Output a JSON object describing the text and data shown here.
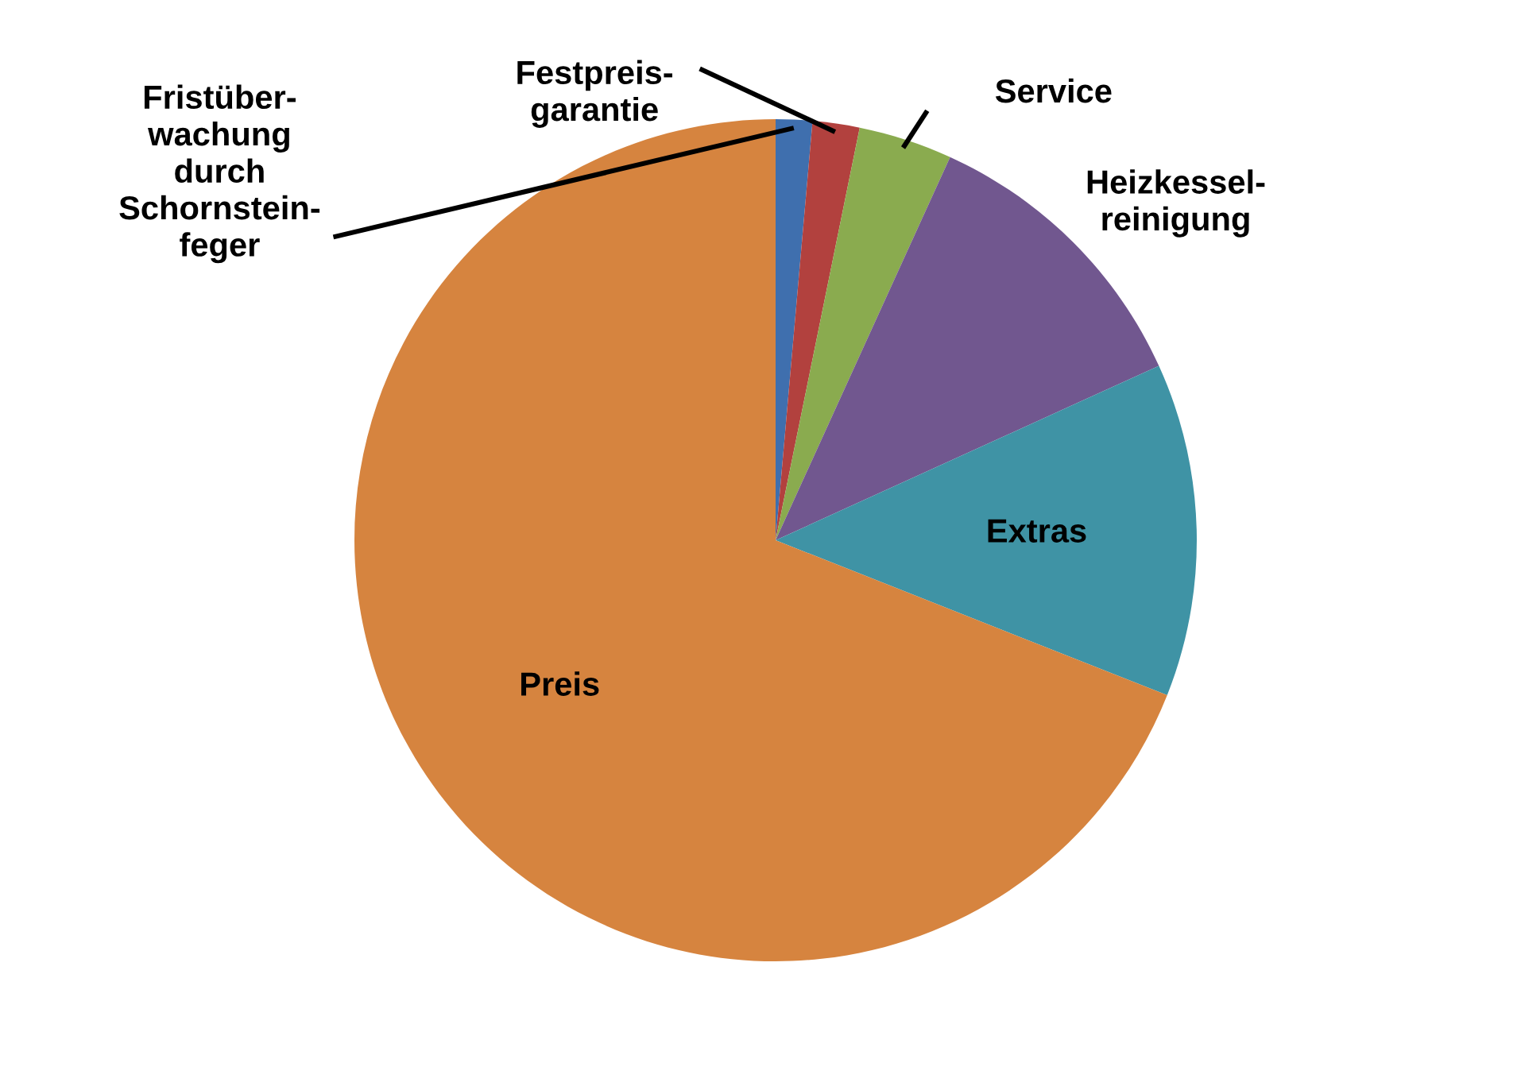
{
  "chart_data": {
    "type": "pie",
    "categories": [
      "Fristüber-\nwachung\ndurch\nSchornstein-\nfeger",
      "Festpreis-\ngarantie",
      "Service",
      "Heizkessel-\nreinigung",
      "Extras",
      "Preis"
    ],
    "values": [
      1.4,
      1.8,
      3.6,
      11.4,
      12.8,
      69.0
    ],
    "colors": [
      "#3f6fae",
      "#b2413e",
      "#8aab4f",
      "#71578f",
      "#3f93a5",
      "#d6843f"
    ],
    "legend": false
  }
}
